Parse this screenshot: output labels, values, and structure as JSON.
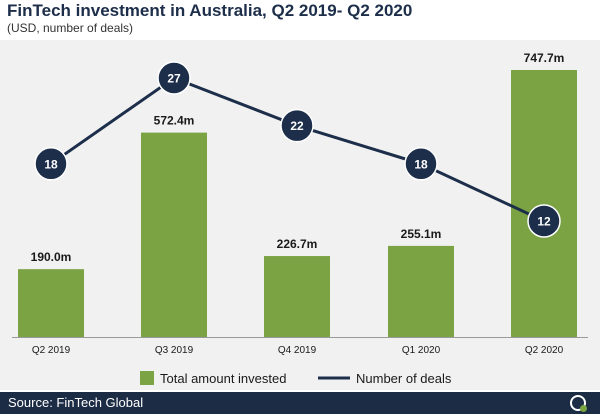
{
  "title": "FinTech investment in Australia, Q2 2019- Q2 2020",
  "subtitle": "(USD, number of deals)",
  "source": "Source: FinTech Global",
  "colors": {
    "bar": "#7ba344",
    "line": "#1c2e4a",
    "footer": "#1c2c45"
  },
  "chart_data": {
    "type": "bar",
    "categories": [
      "Q2 2019",
      "Q3 2019",
      "Q4 2019",
      "Q1 2020",
      "Q2 2020"
    ],
    "series": [
      {
        "name": "Total amount invested",
        "type": "bar",
        "values": [
          190.0,
          572.4,
          226.7,
          255.1,
          747.7
        ],
        "labels": [
          "190.0m",
          "572.4m",
          "226.7m",
          "255.1m",
          "747.7m"
        ]
      },
      {
        "name": "Number of deals",
        "type": "line",
        "values": [
          18,
          27,
          22,
          18,
          12
        ],
        "labels": [
          "18",
          "27",
          "22",
          "18",
          "12"
        ]
      }
    ],
    "legend": [
      "Total amount invested",
      "Number of deals"
    ],
    "legend_position": "bottom",
    "grid": false
  }
}
